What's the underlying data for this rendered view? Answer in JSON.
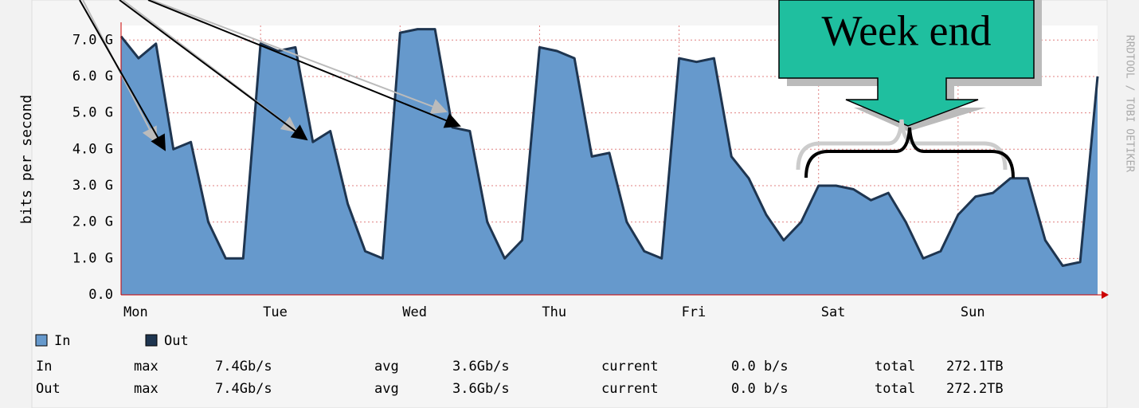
{
  "chart_data": {
    "type": "area",
    "ylabel": "bits per second",
    "watermark": "RRDTOOL / TOBI OETIKER",
    "annotation": "Week end",
    "xlim": [
      0,
      168
    ],
    "xticks": [
      {
        "value": 0,
        "label": "Mon"
      },
      {
        "value": 24,
        "label": "Tue"
      },
      {
        "value": 48,
        "label": "Wed"
      },
      {
        "value": 72,
        "label": "Thu"
      },
      {
        "value": 96,
        "label": "Fri"
      },
      {
        "value": 120,
        "label": "Sat"
      },
      {
        "value": 144,
        "label": "Sun"
      }
    ],
    "ylim": [
      0,
      7.4
    ],
    "yticks": [
      {
        "value": 0,
        "label": "0.0"
      },
      {
        "value": 1,
        "label": "1.0 G"
      },
      {
        "value": 2,
        "label": "2.0 G"
      },
      {
        "value": 3,
        "label": "3.0 G"
      },
      {
        "value": 4,
        "label": "4.0 G"
      },
      {
        "value": 5,
        "label": "5.0 G"
      },
      {
        "value": 6,
        "label": "6.0 G"
      },
      {
        "value": 7,
        "label": "7.0 G"
      }
    ],
    "grid": true,
    "x": [
      0,
      3,
      6,
      9,
      12,
      15,
      18,
      21,
      24,
      27,
      30,
      33,
      36,
      39,
      42,
      45,
      48,
      51,
      54,
      57,
      60,
      63,
      66,
      69,
      72,
      75,
      78,
      81,
      84,
      87,
      90,
      93,
      96,
      99,
      102,
      105,
      108,
      111,
      114,
      117,
      120,
      123,
      126,
      129,
      132,
      135,
      138,
      141,
      144,
      147,
      150,
      153,
      156,
      159,
      162,
      165,
      168
    ],
    "series": [
      {
        "name": "In",
        "color": "#6699cc",
        "values": [
          7.1,
          6.5,
          6.9,
          4.0,
          4.2,
          2.0,
          1.0,
          1.0,
          6.9,
          6.7,
          6.8,
          4.2,
          4.5,
          2.5,
          1.2,
          1.0,
          7.2,
          7.3,
          7.3,
          4.6,
          4.5,
          2.0,
          1.0,
          1.5,
          6.8,
          6.7,
          6.5,
          3.8,
          3.9,
          2.0,
          1.2,
          1.0,
          6.5,
          6.4,
          6.5,
          3.8,
          3.2,
          2.2,
          1.5,
          2.0,
          3.0,
          3.0,
          2.9,
          2.6,
          2.8,
          2.0,
          1.0,
          1.2,
          2.2,
          2.7,
          2.8,
          3.2,
          3.2,
          1.5,
          0.8,
          0.9,
          6.0
        ]
      },
      {
        "name": "Out",
        "color": "#1e3550",
        "values": [
          7.1,
          6.5,
          6.9,
          4.0,
          4.2,
          2.0,
          1.0,
          1.0,
          6.9,
          6.7,
          6.8,
          4.2,
          4.5,
          2.5,
          1.2,
          1.0,
          7.2,
          7.3,
          7.3,
          4.6,
          4.5,
          2.0,
          1.0,
          1.5,
          6.8,
          6.7,
          6.5,
          3.8,
          3.9,
          2.0,
          1.2,
          1.0,
          6.5,
          6.4,
          6.5,
          3.8,
          3.2,
          2.2,
          1.5,
          2.0,
          3.0,
          3.0,
          2.9,
          2.6,
          2.8,
          2.0,
          1.0,
          1.2,
          2.2,
          2.7,
          2.8,
          3.2,
          3.2,
          1.5,
          0.8,
          0.9,
          6.0
        ]
      }
    ],
    "stats": [
      [
        "In",
        "max",
        "7.4Gb/s",
        "avg",
        "3.6Gb/s",
        "current",
        "0.0 b/s",
        "total",
        "272.1TB"
      ],
      [
        "Out",
        "max",
        "7.4Gb/s",
        "avg",
        "3.6Gb/s",
        "current",
        "0.0 b/s",
        "total",
        "272.2TB"
      ]
    ]
  }
}
